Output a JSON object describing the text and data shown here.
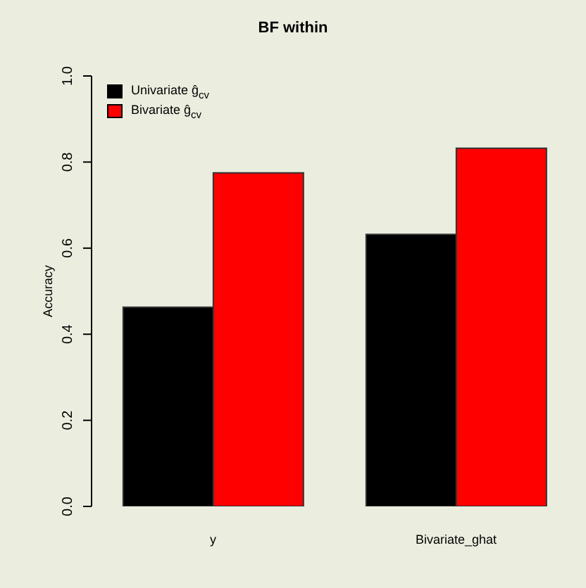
{
  "chart_data": {
    "type": "bar",
    "title": "BF within",
    "ylabel": "Accuracy",
    "categories": [
      "y",
      "Bivariate_ghat"
    ],
    "series": [
      {
        "name": "Univariate ĝ$_{cv}$",
        "color": "#000000",
        "values": [
          0.463,
          0.632
        ]
      },
      {
        "name": "Bivariate ĝ$_{cv}$",
        "color": "#ff0000",
        "values": [
          0.775,
          0.832
        ]
      }
    ],
    "ylim": [
      0,
      1
    ],
    "yticks": [
      {
        "value": 0,
        "label": "0.0"
      },
      0.2,
      0.4,
      0.6,
      0.8,
      {
        "value": 1,
        "label": "1.0"
      }
    ],
    "grid": false,
    "legend": "top left"
  }
}
